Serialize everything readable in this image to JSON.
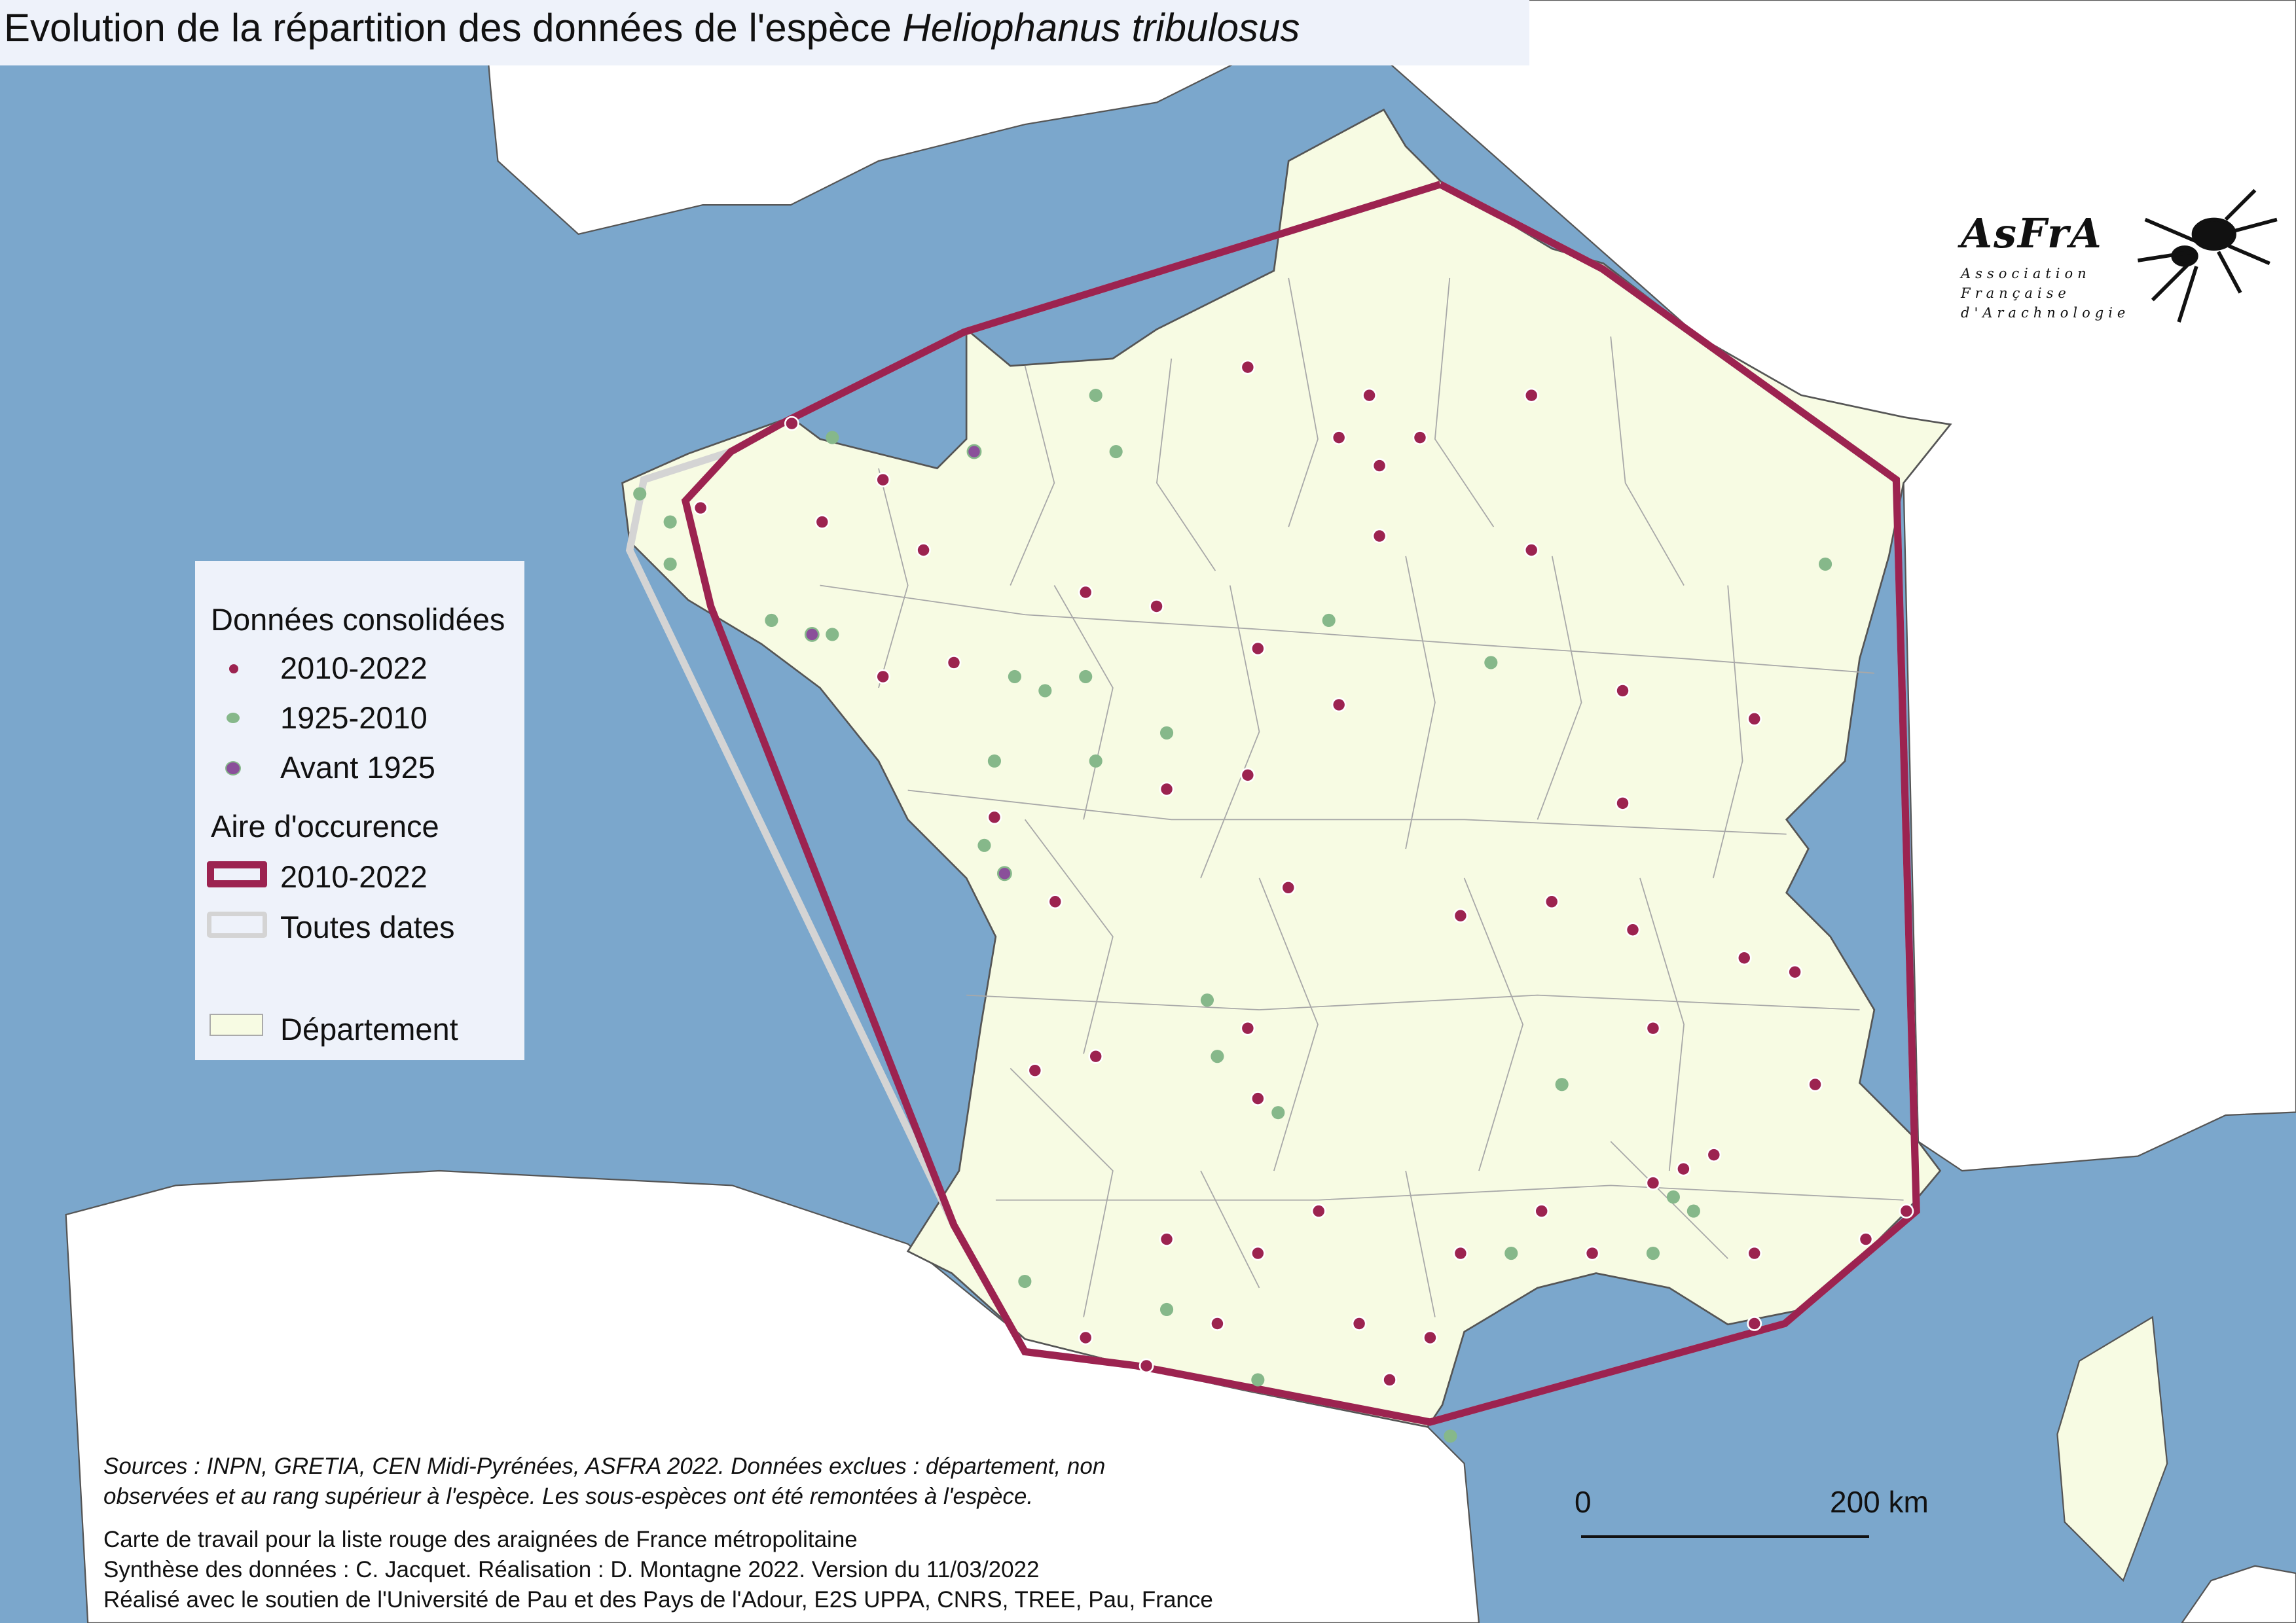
{
  "title": {
    "main": "Evolution de la répartition des données de l'espèce ",
    "species": "Heliophanus tribulosus"
  },
  "legend": {
    "section_points": "Données consolidées",
    "points": [
      {
        "label": "2010-2022",
        "color": "#9c2350"
      },
      {
        "label": "1925-2010",
        "color": "#86b88a"
      },
      {
        "label": "Avant 1925",
        "color": "#8a4f9a"
      }
    ],
    "section_area": "Aire d'occurence",
    "areas": [
      {
        "label": "2010-2022",
        "color": "#9c2350"
      },
      {
        "label": "Toutes dates",
        "color": "#d4d4d4"
      }
    ],
    "department": {
      "label": "Département",
      "color": "#f7fbe3"
    }
  },
  "footer": {
    "sources_line1": "Sources : INPN, GRETIA, CEN Midi-Pyrénées, ASFRA 2022. Données exclues : département, non",
    "sources_line2": "observées et au rang supérieur à l'espèce. Les sous-espèces ont été remontées à l'espèce.",
    "line3": "Carte de travail pour la liste rouge des araignées de France métropolitaine",
    "line4": "Synthèse des données : C. Jacquet. Réalisation : D. Montagne 2022. Version du 11/03/2022",
    "line5": "Réalisé avec le soutien de l'Université de Pau et des Pays de l'Adour, E2S UPPA, CNRS, TREE, Pau, France"
  },
  "scale_bar": {
    "start": "0",
    "end": "200 km"
  },
  "logo": {
    "name": "AsFrA",
    "line1": "Association",
    "line2": "Française",
    "line3": "d'Arachnologie"
  },
  "colors": {
    "sea": "#7ba7cc",
    "land": "#ffffff",
    "department": "#f7fbe3",
    "borders": "#a0a0a0"
  },
  "map_data": {
    "points_2010_2022": [
      [
        2.6,
        49.1
      ],
      [
        2.2,
        49.3
      ],
      [
        3.0,
        49.3
      ],
      [
        2.5,
        49.6
      ],
      [
        2.6,
        48.6
      ],
      [
        4.1,
        48.5
      ],
      [
        5.0,
        47.5
      ],
      [
        6.3,
        47.3
      ],
      [
        5.0,
        46.7
      ],
      [
        5.1,
        45.8
      ],
      [
        6.2,
        45.6
      ],
      [
        6.7,
        45.5
      ],
      [
        6.9,
        44.7
      ],
      [
        5.3,
        45.1
      ],
      [
        5.3,
        44.0
      ],
      [
        5.9,
        44.2
      ],
      [
        6.3,
        43.5
      ],
      [
        6.3,
        43.0
      ],
      [
        7.4,
        43.6
      ],
      [
        7.8,
        43.8
      ],
      [
        4.2,
        43.8
      ],
      [
        3.4,
        43.5
      ],
      [
        3.1,
        42.9
      ],
      [
        2.7,
        42.6
      ],
      [
        1.4,
        43.5
      ],
      [
        0.5,
        43.6
      ],
      [
        -0.3,
        42.9
      ],
      [
        -0.8,
        44.8
      ],
      [
        -0.2,
        44.9
      ],
      [
        1.3,
        45.1
      ],
      [
        1.4,
        44.6
      ],
      [
        2.0,
        43.8
      ],
      [
        -1.6,
        47.7
      ],
      [
        -1.9,
        48.5
      ],
      [
        -2.3,
        47.6
      ],
      [
        -2.9,
        48.7
      ],
      [
        -0.3,
        48.2
      ],
      [
        0.4,
        48.1
      ],
      [
        1.3,
        49.8
      ],
      [
        1.4,
        47.8
      ],
      [
        1.3,
        46.9
      ],
      [
        3.4,
        45.9
      ],
      [
        1.7,
        46.1
      ],
      [
        -0.6,
        46.0
      ],
      [
        -1.2,
        46.6
      ],
      [
        0.5,
        46.8
      ],
      [
        -2.3,
        49.0
      ],
      [
        -3.2,
        49.4
      ],
      [
        -4.1,
        48.8
      ],
      [
        2.2,
        47.4
      ],
      [
        4.3,
        46.0
      ],
      [
        4.7,
        43.5
      ],
      [
        2.4,
        43.0
      ],
      [
        1.0,
        43.0
      ],
      [
        0.3,
        42.7
      ],
      [
        4.1,
        49.6
      ],
      [
        5.6,
        44.1
      ]
    ],
    "points_1925_2010": [
      [
        -0.2,
        49.6
      ],
      [
        0.0,
        49.2
      ],
      [
        -2.8,
        49.3
      ],
      [
        -4.7,
        48.9
      ],
      [
        -4.4,
        48.7
      ],
      [
        -4.4,
        48.4
      ],
      [
        -3.4,
        48.0
      ],
      [
        -2.8,
        47.9
      ],
      [
        -1.0,
        47.6
      ],
      [
        -0.7,
        47.5
      ],
      [
        -0.3,
        47.6
      ],
      [
        -1.2,
        47.0
      ],
      [
        -0.2,
        47.0
      ],
      [
        0.5,
        47.2
      ],
      [
        2.1,
        48.0
      ],
      [
        3.7,
        47.7
      ],
      [
        7.0,
        48.4
      ],
      [
        1.0,
        44.9
      ],
      [
        1.6,
        44.5
      ],
      [
        4.4,
        44.7
      ],
      [
        5.5,
        43.9
      ],
      [
        5.7,
        43.8
      ],
      [
        5.3,
        43.5
      ],
      [
        1.4,
        42.6
      ],
      [
        -0.9,
        43.3
      ],
      [
        0.5,
        43.1
      ],
      [
        3.9,
        43.5
      ],
      [
        3.3,
        42.2
      ],
      [
        -1.3,
        46.4
      ],
      [
        0.9,
        45.3
      ]
    ],
    "points_before_1925": [
      [
        -1.4,
        49.2
      ],
      [
        -1.1,
        46.2
      ],
      [
        -3.0,
        47.9
      ]
    ],
    "hull_2010_2022": [
      [
        3.2,
        51.1
      ],
      [
        4.8,
        50.5
      ],
      [
        7.7,
        49.0
      ],
      [
        7.9,
        43.8
      ],
      [
        6.6,
        43.0
      ],
      [
        3.1,
        42.3
      ],
      [
        0.2,
        42.7
      ],
      [
        -0.9,
        42.8
      ],
      [
        -1.6,
        43.7
      ],
      [
        -4.0,
        48.1
      ],
      [
        -4.25,
        48.85
      ],
      [
        -3.8,
        49.2
      ],
      [
        -3.3,
        49.4
      ],
      [
        -1.5,
        50.05
      ]
    ],
    "hull_all_dates": [
      [
        3.2,
        51.1
      ],
      [
        4.8,
        50.5
      ],
      [
        7.7,
        49.0
      ],
      [
        7.9,
        43.8
      ],
      [
        6.6,
        43.0
      ],
      [
        3.1,
        42.3
      ],
      [
        0.2,
        42.7
      ],
      [
        -0.9,
        42.8
      ],
      [
        -1.6,
        43.7
      ],
      [
        -4.8,
        48.5
      ],
      [
        -4.66,
        49.0
      ],
      [
        -3.8,
        49.2
      ],
      [
        -3.3,
        49.4
      ],
      [
        -1.5,
        50.05
      ]
    ]
  }
}
